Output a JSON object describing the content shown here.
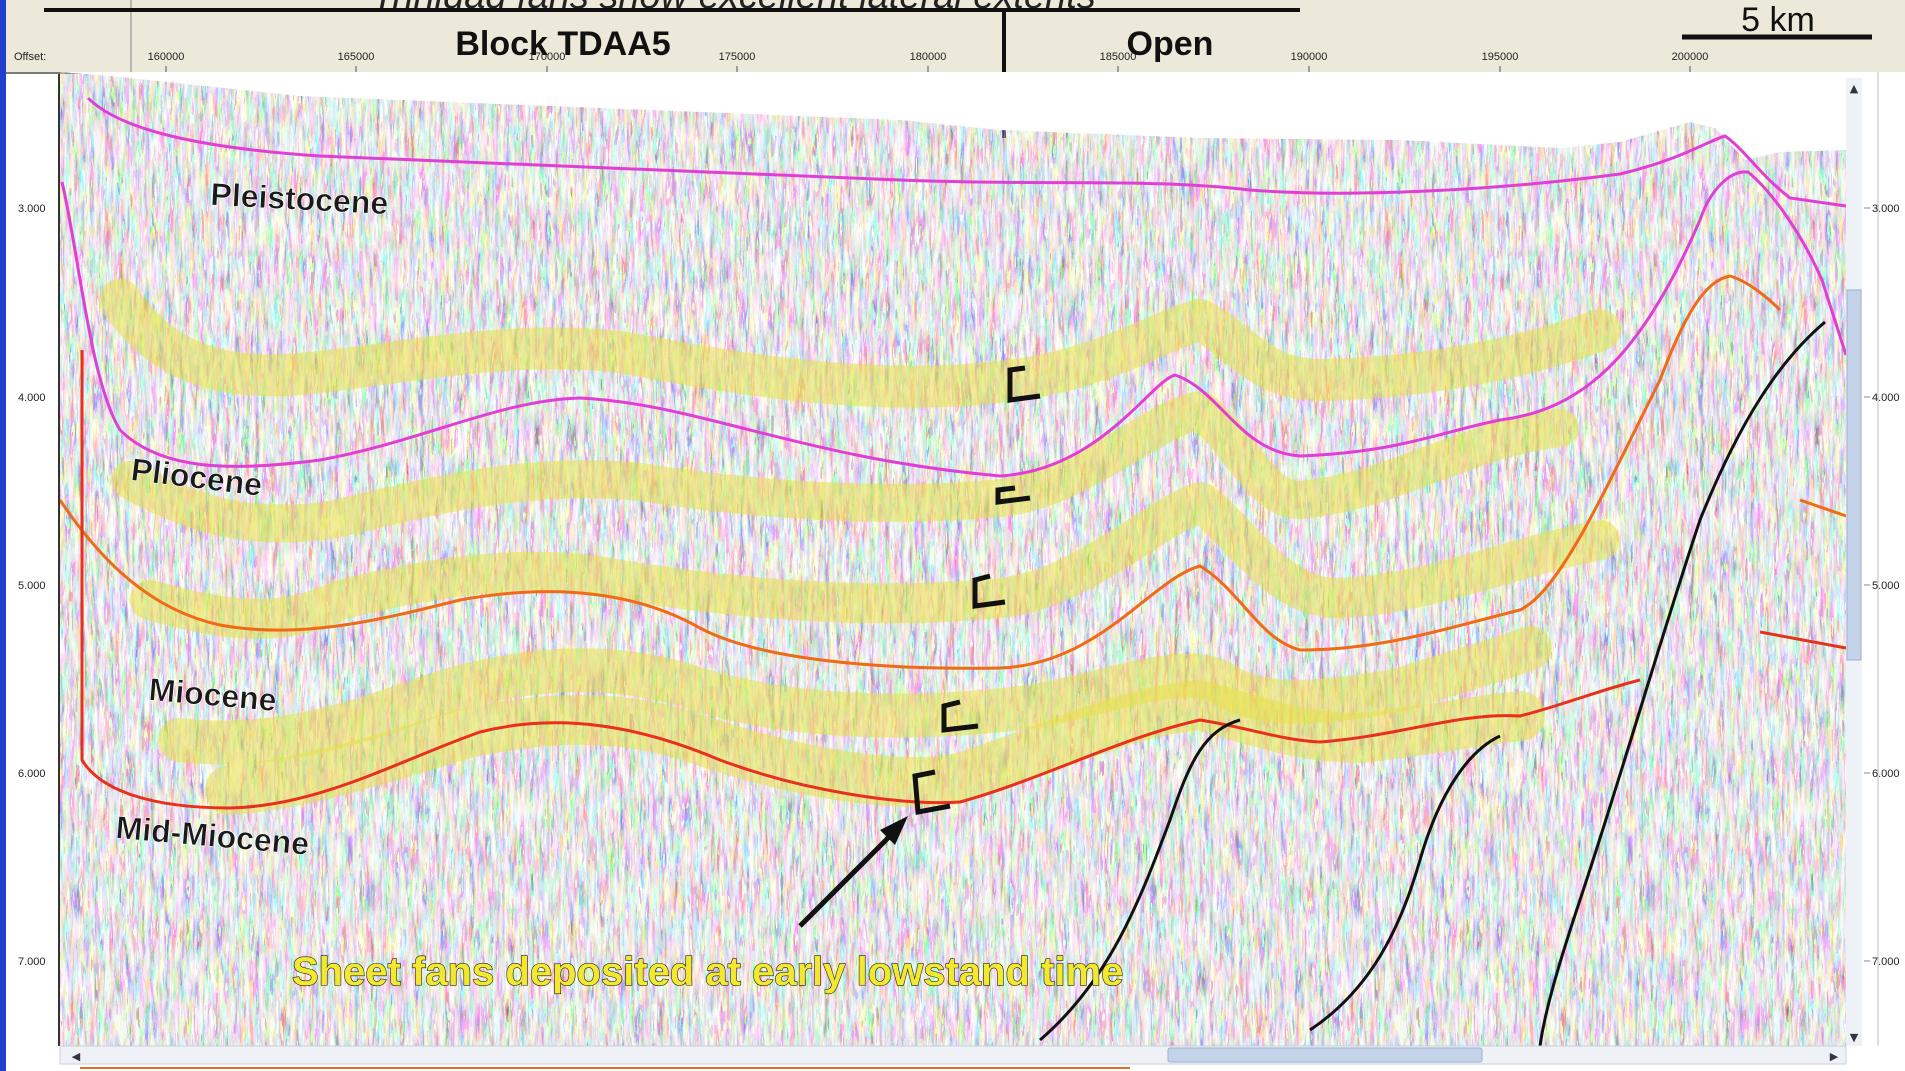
{
  "header": {
    "title": "Trinidad fans show excellent lateral extents",
    "block_label": "Block TDAA5",
    "open_label": "Open",
    "scale_bar_label": "5 km"
  },
  "axis": {
    "offset_label": "Offset:",
    "offset_ticks": [
      "160000",
      "165000",
      "170000",
      "175000",
      "180000",
      "185000",
      "190000",
      "195000",
      "200000"
    ],
    "time_ticks": [
      "3.000",
      "4.000",
      "5.000",
      "6.000",
      "7.000"
    ]
  },
  "units": {
    "pleistocene": "Pleistocene",
    "pliocene": "Pliocene",
    "miocene": "Miocene",
    "mid_miocene": "Mid-Miocene"
  },
  "annotation": {
    "sheet_fans": "Sheet fans deposited at early lowstand time"
  },
  "colors": {
    "pleistocene_horizon": "#e23ed6",
    "pliocene_horizon": "#e23ed6",
    "miocene_horizon": "#f06a18",
    "mid_miocene_horizon": "#e8301c",
    "fan_highlight": "#e8e04a",
    "fault": "#111111",
    "header_bg": "#ece8da",
    "annotation_text": "#f2e830"
  },
  "icons": {
    "scroll_left": "triangle-left",
    "scroll_right": "triangle-right",
    "scroll_up": "triangle-up",
    "scroll_down": "triangle-down"
  }
}
